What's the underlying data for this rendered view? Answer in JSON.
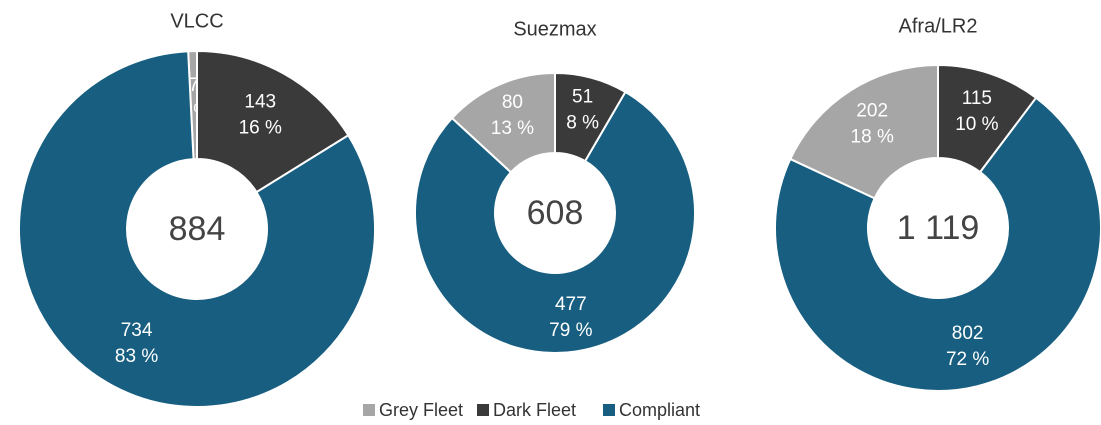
{
  "chart_data": [
    {
      "type": "donut",
      "title": "VLCC",
      "categories": [
        "Grey Fleet",
        "Dark Fleet",
        "Compliant"
      ],
      "colors": [
        "#a6a6a6",
        "#3a3a3a",
        "#175e80"
      ],
      "values": [
        7,
        143,
        734
      ],
      "percentages": [
        1,
        16,
        83
      ],
      "percentage_labels": [
        "1 %",
        "16 %",
        "83 %"
      ],
      "total": 884
    },
    {
      "type": "donut",
      "title": "Suezmax",
      "categories": [
        "Grey Fleet",
        "Dark Fleet",
        "Compliant"
      ],
      "colors": [
        "#a6a6a6",
        "#3a3a3a",
        "#175e80"
      ],
      "values": [
        80,
        51,
        477
      ],
      "percentages": [
        13,
        8,
        79
      ],
      "percentage_labels": [
        "13 %",
        "8 %",
        "79 %"
      ],
      "total": 608
    },
    {
      "type": "donut",
      "title": "Afra/LR2",
      "categories": [
        "Grey Fleet",
        "Dark Fleet",
        "Compliant"
      ],
      "colors": [
        "#a6a6a6",
        "#3a3a3a",
        "#175e80"
      ],
      "values": [
        202,
        115,
        802
      ],
      "percentages": [
        18,
        10,
        72
      ],
      "percentage_labels": [
        "18 %",
        "10 %",
        "72 %"
      ],
      "total": {
        "value": 1119,
        "label": "1 119"
      }
    }
  ]
}
